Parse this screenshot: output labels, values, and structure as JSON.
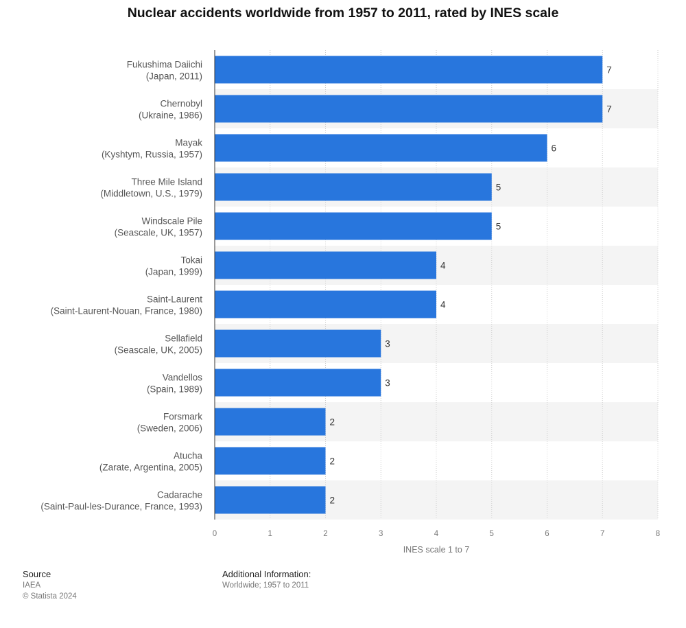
{
  "chart_data": {
    "type": "bar",
    "orientation": "horizontal",
    "title": "Nuclear accidents worldwide from 1957 to 2011, rated by INES scale",
    "xlabel": "INES scale 1 to 7",
    "ylabel": "",
    "xlim": [
      0,
      8
    ],
    "xticks": [
      "0",
      "1",
      "2",
      "3",
      "4",
      "5",
      "6",
      "7",
      "8"
    ],
    "grid": true,
    "bar_color": "#2876dd",
    "categories": [
      {
        "name": "Fukushima Daiichi",
        "detail": "(Japan, 2011)"
      },
      {
        "name": "Chernobyl",
        "detail": "(Ukraine, 1986)"
      },
      {
        "name": "Mayak",
        "detail": "(Kyshtym, Russia, 1957)"
      },
      {
        "name": "Three Mile Island",
        "detail": "(Middletown, U.S., 1979)"
      },
      {
        "name": "Windscale Pile",
        "detail": "(Seascale, UK, 1957)"
      },
      {
        "name": "Tokai",
        "detail": "(Japan, 1999)"
      },
      {
        "name": "Saint-Laurent",
        "detail": "(Saint-Laurent-Nouan, France, 1980)"
      },
      {
        "name": "Sellafield",
        "detail": "(Seascale, UK, 2005)"
      },
      {
        "name": "Vandellos",
        "detail": "(Spain, 1989)"
      },
      {
        "name": "Forsmark",
        "detail": "(Sweden, 2006)"
      },
      {
        "name": "Atucha",
        "detail": "(Zarate, Argentina, 2005)"
      },
      {
        "name": "Cadarache",
        "detail": "(Saint-Paul-les-Durance, France, 1993)"
      }
    ],
    "values": [
      7,
      7,
      6,
      5,
      5,
      4,
      4,
      3,
      3,
      2,
      2,
      2
    ]
  },
  "footer": {
    "source_label": "Source",
    "source_value": "IAEA",
    "copyright": "© Statista 2024",
    "additional_label": "Additional Information:",
    "additional_value": "Worldwide; 1957 to 2011"
  }
}
